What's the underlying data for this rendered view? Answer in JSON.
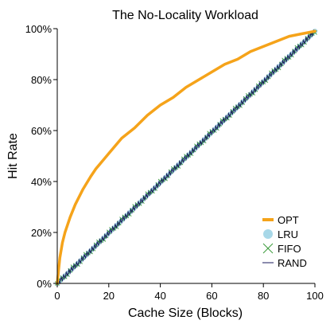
{
  "chart_data": {
    "type": "line",
    "title": "The No-Locality Workload",
    "xlabel": "Cache Size (Blocks)",
    "ylabel": "Hit Rate",
    "xlim": [
      0,
      100
    ],
    "ylim": [
      0,
      100
    ],
    "x_ticks": [
      0,
      20,
      40,
      60,
      80,
      100
    ],
    "y_ticks": [
      0,
      20,
      40,
      60,
      80,
      100
    ],
    "x_tick_labels": [
      "0",
      "20",
      "40",
      "60",
      "80",
      "100"
    ],
    "y_tick_labels": [
      "0%",
      "20%",
      "40%",
      "60%",
      "80%",
      "100%"
    ],
    "grid": false,
    "legend_position": "bottom-right",
    "series": [
      {
        "name": "OPT",
        "color": "#f5a31a",
        "style": "thick-line",
        "x": [
          0,
          1,
          2,
          3,
          5,
          7,
          10,
          13,
          15,
          20,
          25,
          30,
          35,
          40,
          45,
          50,
          55,
          60,
          65,
          70,
          75,
          80,
          85,
          90,
          95,
          100
        ],
        "y": [
          0,
          10,
          16,
          20,
          26,
          31,
          37,
          42,
          45,
          51,
          57,
          61,
          66,
          70,
          73,
          77,
          80,
          83,
          86,
          88,
          91,
          93,
          95,
          97,
          98,
          99
        ]
      },
      {
        "name": "LRU",
        "color": "#a8d8e8",
        "style": "circles",
        "x": [
          0,
          10,
          20,
          30,
          40,
          50,
          60,
          70,
          80,
          90,
          100
        ],
        "y": [
          0,
          10,
          20,
          30,
          40,
          50,
          60,
          70,
          80,
          90,
          99
        ]
      },
      {
        "name": "FIFO",
        "color": "#3a9a3a",
        "style": "crosses",
        "x": [
          0,
          10,
          20,
          30,
          40,
          50,
          60,
          70,
          80,
          90,
          100
        ],
        "y": [
          0,
          10,
          20,
          30,
          40,
          50,
          60,
          70,
          80,
          90,
          99
        ]
      },
      {
        "name": "RAND",
        "color": "#1a1a5e",
        "style": "thin-line",
        "x": [
          0,
          10,
          20,
          30,
          40,
          50,
          60,
          70,
          80,
          90,
          100
        ],
        "y": [
          0,
          10,
          20,
          30,
          40,
          50,
          60,
          70,
          80,
          90,
          99
        ]
      }
    ]
  }
}
